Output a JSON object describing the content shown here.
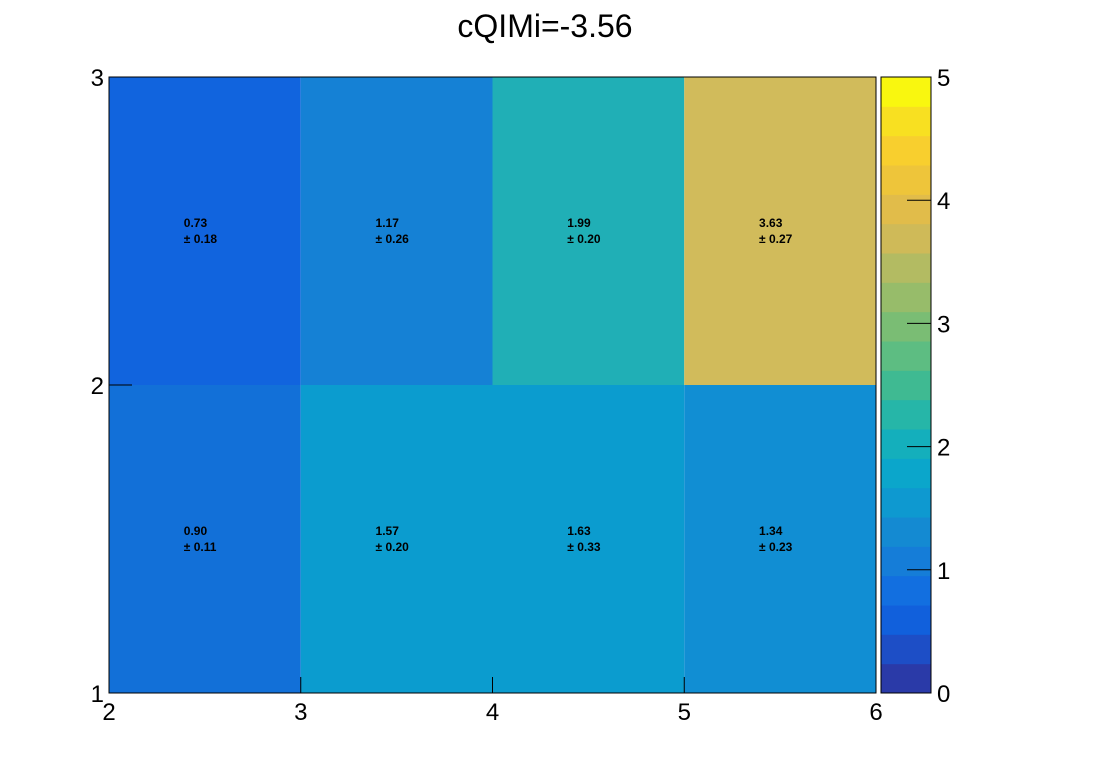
{
  "chart_data": {
    "type": "heatmap",
    "title": "cQIMi=-3.56",
    "xlabel": "",
    "ylabel": "",
    "x_edges": [
      2,
      3,
      4,
      5,
      6
    ],
    "y_edges": [
      1,
      2,
      3
    ],
    "xlim": [
      2,
      6
    ],
    "ylim": [
      1,
      3
    ],
    "x_ticks": [
      "2",
      "3",
      "4",
      "5",
      "6"
    ],
    "y_ticks": [
      "1",
      "2",
      "3"
    ],
    "zlim": [
      0,
      5
    ],
    "z_ticks": [
      "0",
      "1",
      "2",
      "3",
      "4",
      "5"
    ],
    "cells": [
      {
        "x": [
          2,
          3
        ],
        "y": [
          1,
          2
        ],
        "value": "0.90",
        "error": "± 0.11",
        "color": "#1270d8"
      },
      {
        "x": [
          3,
          4
        ],
        "y": [
          1,
          2
        ],
        "value": "1.57",
        "error": "± 0.20",
        "color": "#0b9ccf"
      },
      {
        "x": [
          4,
          5
        ],
        "y": [
          1,
          2
        ],
        "value": "1.63",
        "error": "± 0.33",
        "color": "#0b9ccf"
      },
      {
        "x": [
          5,
          6
        ],
        "y": [
          1,
          2
        ],
        "value": "1.34",
        "error": "± 0.23",
        "color": "#118ed3"
      },
      {
        "x": [
          2,
          3
        ],
        "y": [
          2,
          3
        ],
        "value": "0.73",
        "error": "± 0.18",
        "color": "#1164de"
      },
      {
        "x": [
          3,
          4
        ],
        "y": [
          2,
          3
        ],
        "value": "1.17",
        "error": "± 0.26",
        "color": "#1581d5"
      },
      {
        "x": [
          4,
          5
        ],
        "y": [
          2,
          3
        ],
        "value": "1.99",
        "error": "± 0.20",
        "color": "#20afb6"
      },
      {
        "x": [
          5,
          6
        ],
        "y": [
          2,
          3
        ],
        "value": "3.63",
        "error": "± 0.27",
        "color": "#d1bb5b"
      }
    ],
    "palette": [
      "#2a3aa8",
      "#1d4ec6",
      "#1160dc",
      "#126fe0",
      "#157dd8",
      "#148ad2",
      "#0e99d0",
      "#0ba6cb",
      "#14afbc",
      "#26b6a8",
      "#3fba92",
      "#5dbd82",
      "#7abd74",
      "#97bc6a",
      "#b3bb62",
      "#cfba58",
      "#e1bc4a",
      "#eec53a",
      "#f8cf2e",
      "#f8e021",
      "#f9f70f"
    ]
  }
}
